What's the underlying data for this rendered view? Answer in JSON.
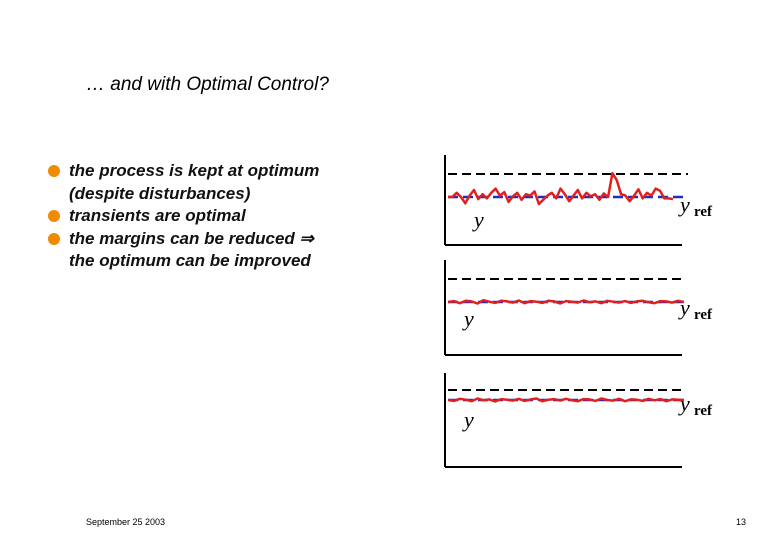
{
  "slide": {
    "title": "… and with Optimal Control?",
    "bullets": [
      {
        "lines": [
          "the process is kept at optimum",
          "(despite disturbances)"
        ]
      },
      {
        "lines": [
          "transients are optimal"
        ]
      },
      {
        "lines": [
          "the margins can be reduced ⇒",
          "the optimum can be improved"
        ]
      }
    ],
    "footer_date": "September 25 2003",
    "page_number": "13"
  },
  "colors": {
    "bullet": "#f08a00",
    "signal": "#e02020",
    "reference": "#1f2ec0",
    "margin": "#000000"
  },
  "diagram": {
    "panels": [
      {
        "output_label": "y",
        "reference_label": "y",
        "reference_subscript": "ref",
        "signal": [
          0,
          0,
          0.3,
          0,
          -0.45,
          0.1,
          0.5,
          -0.15,
          0.2,
          -0.1,
          0.3,
          0.6,
          0.1,
          0.35,
          -0.35,
          0.05,
          0.3,
          -0.2,
          0.2,
          0.1,
          0.4,
          -0.5,
          -0.2,
          0.1,
          0.3,
          -0.1,
          0.6,
          0.2,
          -0.3,
          0.1,
          0.5,
          -0.1,
          0.3,
          0.05,
          0.2,
          -0.2,
          0.25,
          0,
          1.7,
          1.2,
          0.2,
          0.1,
          -0.3,
          0.1,
          0.55,
          -0.1,
          0.3,
          0.1,
          0.6,
          0.45,
          -0.1,
          -0.1,
          -0.15
        ]
      },
      {
        "output_label": "y",
        "reference_label": "y",
        "reference_subscript": "ref",
        "signal": [
          0,
          0.15,
          -0.2,
          0.2,
          0.1,
          -0.25,
          0.3,
          0.05,
          -0.15,
          0.2,
          0.1,
          -0.1,
          0.25,
          -0.2,
          0.15,
          0.05,
          -0.15,
          0.2,
          0.1,
          -0.25,
          0.15,
          0.05,
          -0.1,
          0.25,
          -0.05,
          0.1,
          -0.2,
          0.2,
          0.05,
          -0.1,
          0.15,
          -0.15,
          0.1,
          0.2,
          -0.05,
          -0.2,
          0.15,
          0.1,
          -0.1,
          0.2,
          0
        ]
      },
      {
        "output_label": "y",
        "reference_label": "y",
        "reference_subscript": "ref",
        "signal": [
          0,
          -0.15,
          0.2,
          0.05,
          -0.2,
          0.25,
          -0.05,
          0.1,
          -0.25,
          0.15,
          0.05,
          -0.1,
          0.2,
          -0.15,
          0.1,
          0.25,
          -0.2,
          0.05,
          0.15,
          -0.1,
          0.2,
          -0.05,
          -0.2,
          0.15,
          0.1,
          -0.15,
          0.25,
          0,
          -0.1,
          0.2,
          -0.2,
          0.1,
          0.05,
          -0.15,
          0.2,
          -0.05,
          0.15,
          -0.2,
          0.1,
          0.05,
          0
        ]
      }
    ]
  }
}
